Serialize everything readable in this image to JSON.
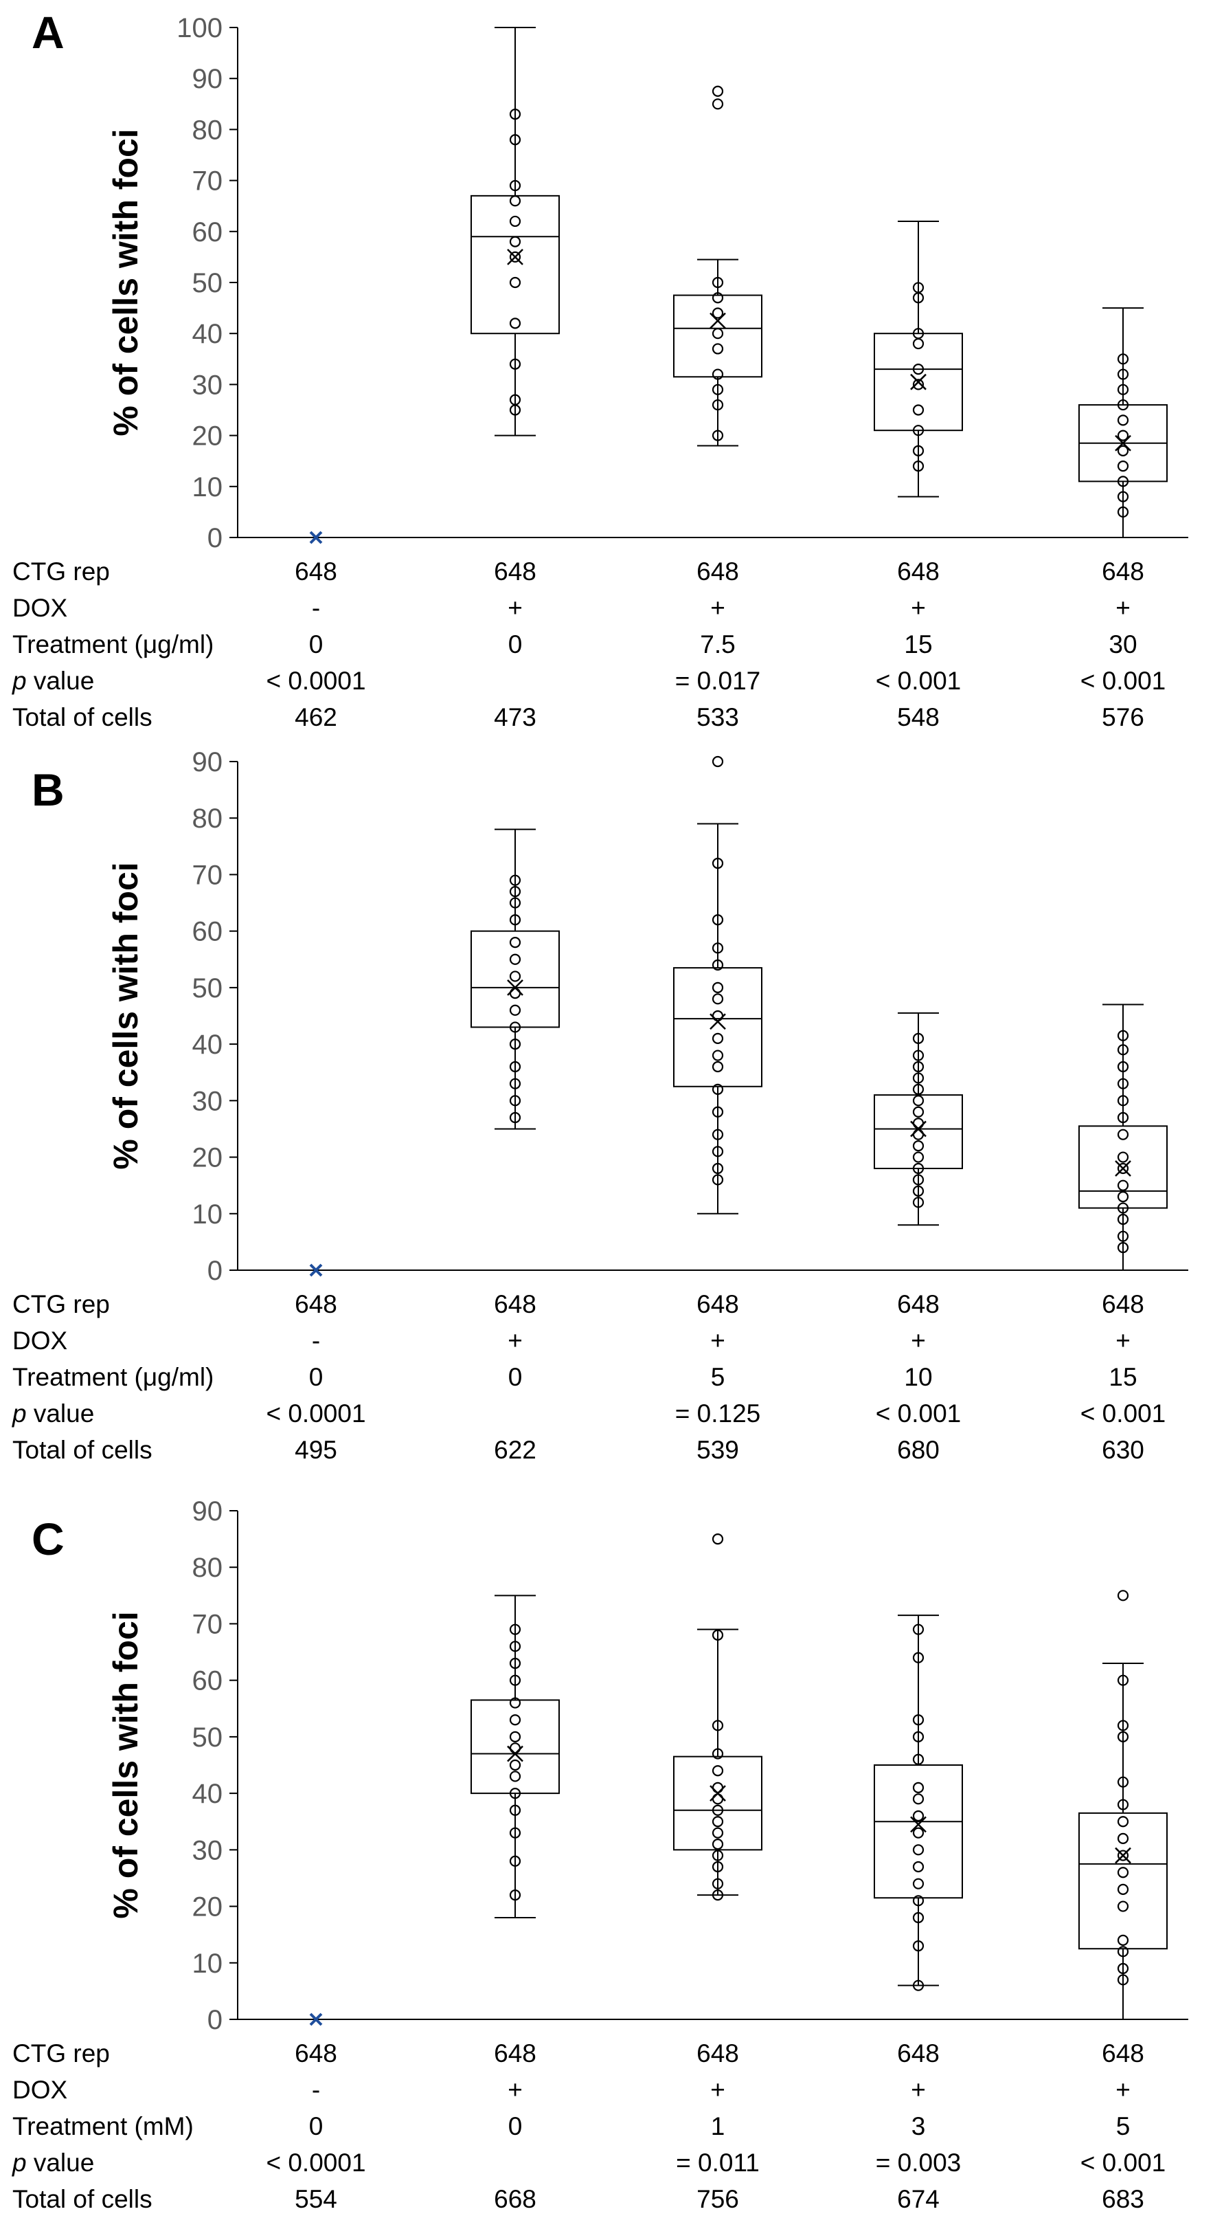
{
  "chart_data": [
    {
      "panel": "A",
      "type": "box",
      "ylabel": "% of cells with foci",
      "ylim": [
        0,
        100
      ],
      "yticks": [
        0,
        10,
        20,
        30,
        40,
        50,
        60,
        70,
        80,
        90,
        100
      ],
      "rows": [
        {
          "label": "CTG rep",
          "values": [
            "648",
            "648",
            "648",
            "648",
            "648"
          ]
        },
        {
          "label": "DOX",
          "values": [
            "-",
            "+",
            "+",
            "+",
            "+"
          ]
        },
        {
          "label": "Treatment (μg/ml)",
          "values": [
            "0",
            "0",
            "7.5",
            "15",
            "30"
          ]
        },
        {
          "label_italic": "p",
          "label": " value",
          "values": [
            "< 0.0001",
            "",
            "= 0.017",
            "< 0.001",
            "< 0.001"
          ]
        },
        {
          "label": "Total of cells",
          "values": [
            "462",
            "473",
            "533",
            "548",
            "576"
          ]
        }
      ],
      "boxes": [
        {
          "empty": true,
          "mean": 0
        },
        {
          "min": 20,
          "q1": 40,
          "median": 59,
          "q3": 67,
          "max": 100,
          "mean": 55,
          "points": [
            25,
            27,
            34,
            42,
            50,
            55,
            58,
            62,
            66,
            69,
            78,
            83
          ]
        },
        {
          "min": 18,
          "q1": 31.5,
          "median": 41,
          "q3": 47.5,
          "max": 54.5,
          "mean": 42.5,
          "points": [
            20,
            26,
            29,
            32,
            37,
            40,
            44,
            47,
            50,
            85,
            87.5
          ]
        },
        {
          "min": 8,
          "q1": 21,
          "median": 33,
          "q3": 40,
          "max": 62,
          "mean": 30.5,
          "points": [
            14,
            17,
            21,
            25,
            30,
            33,
            38,
            40,
            47,
            49
          ]
        },
        {
          "min": 0,
          "q1": 11,
          "median": 18.5,
          "q3": 26,
          "max": 45,
          "mean": 18.5,
          "points": [
            5,
            8,
            11,
            14,
            17,
            20,
            23,
            26,
            29,
            32,
            35
          ]
        }
      ]
    },
    {
      "panel": "B",
      "type": "box",
      "ylabel": "% of cells with foci",
      "ylim": [
        0,
        90
      ],
      "yticks": [
        0,
        10,
        20,
        30,
        40,
        50,
        60,
        70,
        80,
        90
      ],
      "rows": [
        {
          "label": "CTG rep",
          "values": [
            "648",
            "648",
            "648",
            "648",
            "648"
          ]
        },
        {
          "label": "DOX",
          "values": [
            "-",
            "+",
            "+",
            "+",
            "+"
          ]
        },
        {
          "label": "Treatment (μg/ml)",
          "values": [
            "0",
            "0",
            "5",
            "10",
            "15"
          ]
        },
        {
          "label_italic": "p",
          "label": " value",
          "values": [
            "< 0.0001",
            "",
            "= 0.125",
            "< 0.001",
            "< 0.001"
          ]
        },
        {
          "label": "Total of cells",
          "values": [
            "495",
            "622",
            "539",
            "680",
            "630"
          ]
        }
      ],
      "boxes": [
        {
          "empty": true,
          "mean": 0
        },
        {
          "min": 25,
          "q1": 43,
          "median": 50,
          "q3": 60,
          "max": 78,
          "mean": 50,
          "points": [
            27,
            30,
            33,
            36,
            40,
            43,
            46,
            49,
            52,
            55,
            58,
            62,
            65,
            67,
            69
          ]
        },
        {
          "min": 10,
          "q1": 32.5,
          "median": 44.5,
          "q3": 53.5,
          "max": 79,
          "mean": 44,
          "points": [
            16,
            18,
            21,
            24,
            28,
            32,
            36,
            38,
            41,
            45,
            48,
            50,
            54,
            57,
            62,
            72,
            90
          ]
        },
        {
          "min": 8,
          "q1": 18,
          "median": 25,
          "q3": 31,
          "max": 45.5,
          "mean": 25,
          "points": [
            12,
            14,
            16,
            18,
            20,
            22,
            24,
            26,
            28,
            30,
            32,
            34,
            36,
            38,
            41
          ]
        },
        {
          "min": 0,
          "q1": 11,
          "median": 14,
          "q3": 25.5,
          "max": 47,
          "mean": 18,
          "points": [
            4,
            6,
            9,
            11,
            13,
            15,
            18,
            20,
            24,
            27,
            30,
            33,
            36,
            39,
            41.5
          ]
        }
      ]
    },
    {
      "panel": "C",
      "type": "box",
      "ylabel": "% of cells with foci",
      "ylim": [
        0,
        90
      ],
      "yticks": [
        0,
        10,
        20,
        30,
        40,
        50,
        60,
        70,
        80,
        90
      ],
      "rows": [
        {
          "label": "CTG rep",
          "values": [
            "648",
            "648",
            "648",
            "648",
            "648"
          ]
        },
        {
          "label": "DOX",
          "values": [
            "-",
            "+",
            "+",
            "+",
            "+"
          ]
        },
        {
          "label": "Treatment (mM)",
          "values": [
            "0",
            "0",
            "1",
            "3",
            "5"
          ]
        },
        {
          "label_italic": "p",
          "label": " value",
          "values": [
            "< 0.0001",
            "",
            "= 0.011",
            "= 0.003",
            "< 0.001"
          ]
        },
        {
          "label": "Total of cells",
          "values": [
            "554",
            "668",
            "756",
            "674",
            "683"
          ]
        }
      ],
      "boxes": [
        {
          "empty": true,
          "mean": 0
        },
        {
          "min": 18,
          "q1": 40,
          "median": 47,
          "q3": 56.5,
          "max": 75,
          "mean": 47,
          "points": [
            22,
            28,
            33,
            37,
            40,
            43,
            45,
            48,
            50,
            53,
            56,
            60,
            63,
            66,
            69
          ]
        },
        {
          "min": 22,
          "q1": 30,
          "median": 37,
          "q3": 46.5,
          "max": 69,
          "mean": 40,
          "points": [
            22,
            24,
            27,
            29,
            31,
            33,
            35,
            37,
            39,
            41,
            44,
            47,
            52,
            68,
            85
          ]
        },
        {
          "min": 6,
          "q1": 21.5,
          "median": 35,
          "q3": 45,
          "max": 71.5,
          "mean": 34.5,
          "points": [
            6,
            13,
            18,
            21,
            24,
            27,
            30,
            33,
            36,
            39,
            41,
            46,
            50,
            53,
            64,
            69
          ]
        },
        {
          "min": 0,
          "q1": 12.5,
          "median": 27.5,
          "q3": 36.5,
          "max": 63,
          "mean": 29,
          "points": [
            7,
            9,
            12,
            14,
            20,
            23,
            26,
            29,
            32,
            35,
            38,
            42,
            50,
            52,
            60,
            75
          ]
        }
      ]
    }
  ]
}
